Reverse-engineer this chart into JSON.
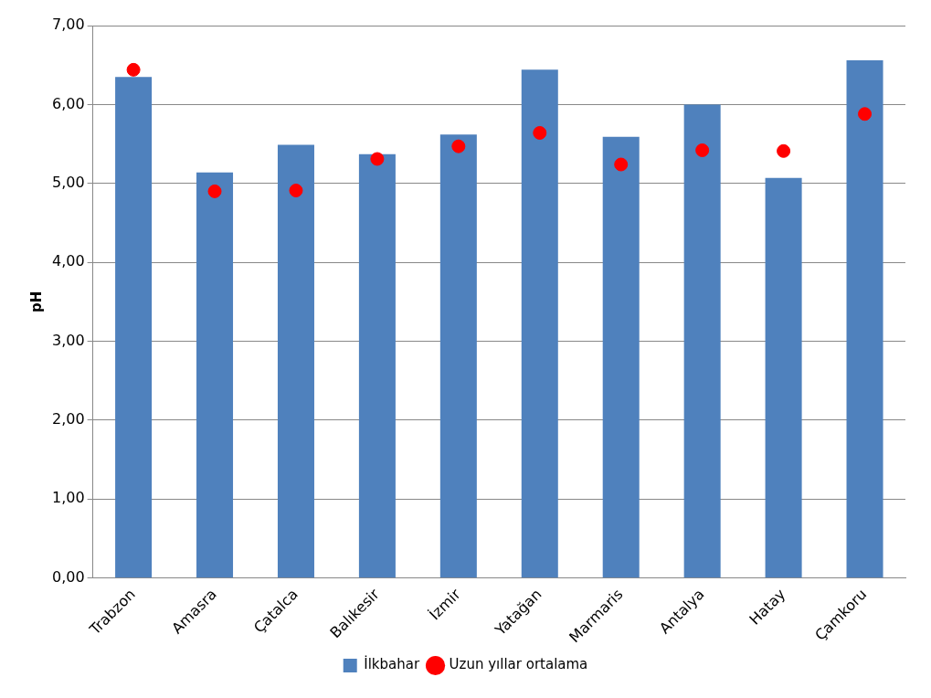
{
  "chart_data": {
    "type": "bar",
    "ylabel": "pH",
    "categories": [
      "Trabzon",
      "Amasra",
      "Çatalca",
      "Balıkesir",
      "İzmir",
      "Yatağan",
      "Marmaris",
      "Antalya",
      "Hatay",
      "Çamkoru"
    ],
    "series": [
      {
        "name": "İlkbahar",
        "color": "#4f81bd",
        "values": [
          6.35,
          5.14,
          5.49,
          5.37,
          5.62,
          6.44,
          5.59,
          6.0,
          5.07,
          6.56
        ]
      },
      {
        "name": "Uzun yıllar ortalama",
        "type": "scatter",
        "color": "#ff0000",
        "x": [
          "Trabzon",
          "Amasra",
          "Çatalca",
          "Balıkesir",
          "İzmir",
          "Yatağan",
          "Marmaris",
          "Antalya",
          "Hatay",
          "Çamkoru"
        ],
        "values": [
          6.44,
          4.9,
          4.91,
          5.31,
          5.47,
          5.64,
          5.24,
          5.42,
          5.41,
          5.88
        ]
      }
    ],
    "ylim": [
      0,
      7
    ],
    "yticks": [
      {
        "value": 0,
        "label": "0,00"
      },
      {
        "value": 1,
        "label": "1,00"
      },
      {
        "value": 2,
        "label": "2,00"
      },
      {
        "value": 3,
        "label": "3,00"
      },
      {
        "value": 4,
        "label": "4,00"
      },
      {
        "value": 5,
        "label": "5,00"
      },
      {
        "value": 6,
        "label": "6,00"
      },
      {
        "value": 7,
        "label": "7,00"
      }
    ],
    "grid": "y",
    "legend": "bottom",
    "marker": "circle"
  }
}
